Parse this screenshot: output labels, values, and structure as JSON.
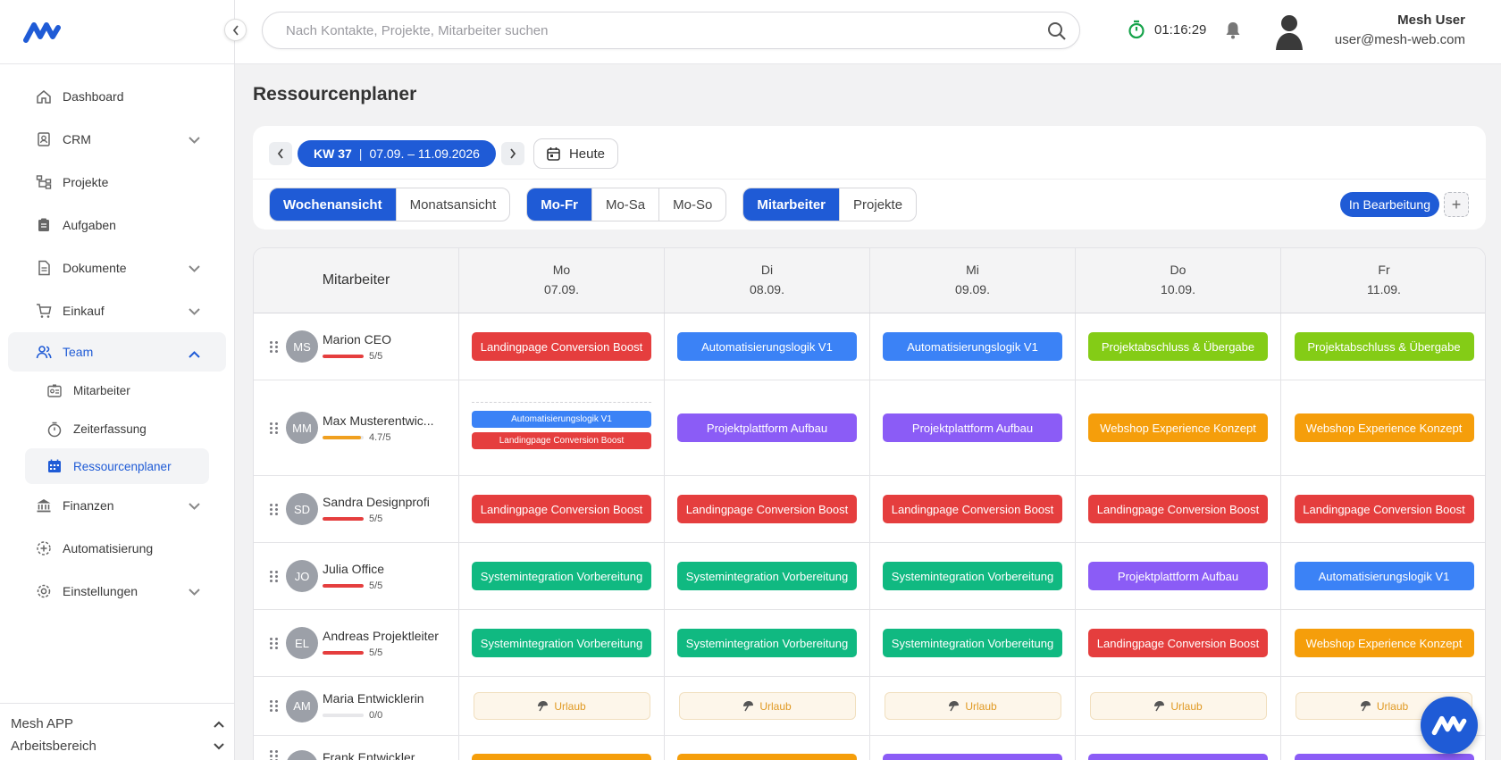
{
  "header": {
    "search_placeholder": "Nach Kontakte, Projekte, Mitarbeiter suchen",
    "timer": "01:16:29",
    "user_name": "Mesh User",
    "user_email": "user@mesh-web.com"
  },
  "sidebar": {
    "items": [
      {
        "label": "Dashboard",
        "icon": "home-icon",
        "expandable": false
      },
      {
        "label": "CRM",
        "icon": "contacts-icon",
        "expandable": true
      },
      {
        "label": "Projekte",
        "icon": "projects-icon",
        "expandable": false
      },
      {
        "label": "Aufgaben",
        "icon": "clipboard-icon",
        "expandable": false
      },
      {
        "label": "Dokumente",
        "icon": "document-icon",
        "expandable": true
      },
      {
        "label": "Einkauf",
        "icon": "cart-icon",
        "expandable": true
      },
      {
        "label": "Team",
        "icon": "team-icon",
        "expandable": true,
        "expanded": true,
        "active": true
      },
      {
        "label": "Finanzen",
        "icon": "bank-icon",
        "expandable": true
      },
      {
        "label": "Automatisierung",
        "icon": "automation-icon",
        "expandable": false
      },
      {
        "label": "Einstellungen",
        "icon": "gear-icon",
        "expandable": true
      }
    ],
    "team_sub": [
      {
        "label": "Mitarbeiter",
        "icon": "badge-icon"
      },
      {
        "label": "Zeiterfassung",
        "icon": "stopwatch-icon"
      },
      {
        "label": "Ressourcenplaner",
        "icon": "calendar-icon",
        "active": true
      }
    ],
    "footer": {
      "app": "Mesh APP",
      "workspace": "Arbeitsbereich"
    }
  },
  "page": {
    "title": "Ressourcenplaner"
  },
  "toolbar": {
    "week_label": "KW 37",
    "week_range": "07.09. – 11.09.2026",
    "today_label": "Heute",
    "view_options": [
      "Wochenansicht",
      "Monatsansicht"
    ],
    "view_selected": 0,
    "days_options": [
      "Mo-Fr",
      "Mo-Sa",
      "Mo-So"
    ],
    "days_selected": 0,
    "group_options": [
      "Mitarbeiter",
      "Projekte"
    ],
    "group_selected": 0,
    "status_label": "In Bearbeitung",
    "add_label": "+"
  },
  "grid": {
    "header_label": "Mitarbeiter",
    "days": [
      {
        "name": "Mo",
        "date": "07.09."
      },
      {
        "name": "Di",
        "date": "08.09."
      },
      {
        "name": "Mi",
        "date": "09.09."
      },
      {
        "name": "Do",
        "date": "10.09."
      },
      {
        "name": "Fr",
        "date": "11.09."
      }
    ],
    "vacation_label": "Urlaub",
    "colors": {
      "red": "#e53e3e",
      "blue": "#3b82f6",
      "green": "#84cc16",
      "purple": "#8b5cf6",
      "orange": "#f59e0b",
      "teal": "#10b981",
      "cap_red": "#e53e3e",
      "cap_orange": "#f0a020"
    },
    "rows": [
      {
        "initials": "MS",
        "name": "Marion CEO",
        "capacity": "5/5",
        "cap_fraction": 1,
        "cap_color": "cap_red",
        "cells": [
          [
            {
              "t": "Landingpage Conversion Boost",
              "c": "red"
            }
          ],
          [
            {
              "t": "Automatisierungslogik V1",
              "c": "blue"
            }
          ],
          [
            {
              "t": "Automatisierungslogik V1",
              "c": "blue"
            }
          ],
          [
            {
              "t": "Projektabschluss & Übergabe",
              "c": "green"
            }
          ],
          [
            {
              "t": "Projektabschluss & Übergabe",
              "c": "green"
            }
          ]
        ]
      },
      {
        "initials": "MM",
        "name": "Max Musterentwic...",
        "capacity": "4.7/5",
        "cap_fraction": 0.94,
        "cap_color": "cap_orange",
        "cells": [
          [
            {
              "t": "Automatisierungslogik V1",
              "c": "blue"
            },
            {
              "t": "Landingpage Conversion Boost",
              "c": "red"
            }
          ],
          [
            {
              "t": "Projektplattform Aufbau",
              "c": "purple"
            }
          ],
          [
            {
              "t": "Projektplattform Aufbau",
              "c": "purple"
            }
          ],
          [
            {
              "t": "Webshop Experience Konzept",
              "c": "orange"
            }
          ],
          [
            {
              "t": "Webshop Experience Konzept",
              "c": "orange"
            }
          ]
        ]
      },
      {
        "initials": "SD",
        "name": "Sandra Designprofi",
        "capacity": "5/5",
        "cap_fraction": 1,
        "cap_color": "cap_red",
        "cells": [
          [
            {
              "t": "Landingpage Conversion Boost",
              "c": "red"
            }
          ],
          [
            {
              "t": "Landingpage Conversion Boost",
              "c": "red"
            }
          ],
          [
            {
              "t": "Landingpage Conversion Boost",
              "c": "red"
            }
          ],
          [
            {
              "t": "Landingpage Conversion Boost",
              "c": "red"
            }
          ],
          [
            {
              "t": "Landingpage Conversion Boost",
              "c": "red"
            }
          ]
        ]
      },
      {
        "initials": "JO",
        "name": "Julia Office",
        "capacity": "5/5",
        "cap_fraction": 1,
        "cap_color": "cap_red",
        "cells": [
          [
            {
              "t": "Systemintegration Vorbereitung",
              "c": "teal"
            }
          ],
          [
            {
              "t": "Systemintegration Vorbereitung",
              "c": "teal"
            }
          ],
          [
            {
              "t": "Systemintegration Vorbereitung",
              "c": "teal"
            }
          ],
          [
            {
              "t": "Projektplattform Aufbau",
              "c": "purple"
            }
          ],
          [
            {
              "t": "Automatisierungslogik V1",
              "c": "blue"
            }
          ]
        ]
      },
      {
        "initials": "EL",
        "name": "Andreas Projektleiter",
        "capacity": "5/5",
        "cap_fraction": 1,
        "cap_color": "cap_red",
        "cells": [
          [
            {
              "t": "Systemintegration Vorbereitung",
              "c": "teal"
            }
          ],
          [
            {
              "t": "Systemintegration Vorbereitung",
              "c": "teal"
            }
          ],
          [
            {
              "t": "Systemintegration Vorbereitung",
              "c": "teal"
            }
          ],
          [
            {
              "t": "Landingpage Conversion Boost",
              "c": "red"
            }
          ],
          [
            {
              "t": "Webshop Experience Konzept",
              "c": "orange"
            }
          ]
        ]
      },
      {
        "initials": "AM",
        "name": "Maria Entwicklerin",
        "capacity": "0/0",
        "cap_fraction": 0,
        "cap_color": "cap_red",
        "vacation": true,
        "cells": [
          [],
          [],
          [],
          [],
          []
        ]
      },
      {
        "initials": "FE",
        "name": "Frank Entwickler",
        "capacity": "",
        "cap_fraction": 0,
        "cap_color": "cap_orange",
        "cells": [
          [
            {
              "t": "",
              "c": "orange"
            }
          ],
          [
            {
              "t": "",
              "c": "orange"
            }
          ],
          [
            {
              "t": "",
              "c": "purple"
            }
          ],
          [
            {
              "t": "",
              "c": "purple"
            }
          ],
          [
            {
              "t": "",
              "c": "purple"
            }
          ]
        ]
      }
    ]
  }
}
